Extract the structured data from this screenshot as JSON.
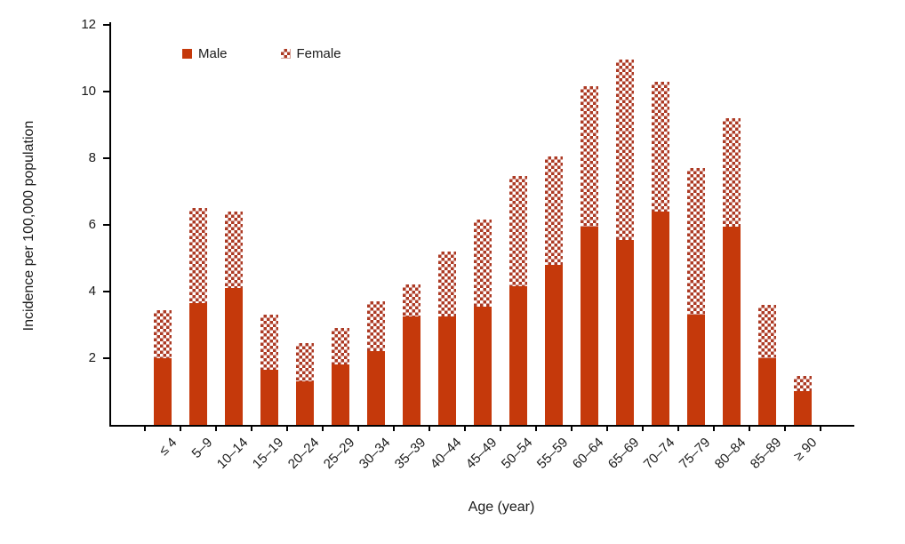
{
  "chart_data": {
    "type": "bar",
    "stacked": true,
    "title": "",
    "xlabel": "Age (year)",
    "ylabel": "Incidence per 100,000 population",
    "ylim": [
      0,
      12
    ],
    "yticks": [
      2,
      4,
      6,
      8,
      10,
      12
    ],
    "grid": "off",
    "legend_position": "top-left-inside",
    "categories": [
      "≤ 4",
      "5–9",
      "10–14",
      "15–19",
      "20–24",
      "25–29",
      "30–34",
      "35–39",
      "40–44",
      "45–49",
      "50–54",
      "55–59",
      "60–64",
      "65–69",
      "70–74",
      "75–79",
      "80–84",
      "85–89",
      "≥ 90"
    ],
    "series": [
      {
        "name": "Male",
        "style": "solid",
        "color": "#C5390B",
        "values": [
          2.0,
          3.65,
          4.1,
          1.65,
          1.3,
          1.8,
          2.2,
          3.25,
          3.25,
          3.55,
          4.15,
          4.8,
          5.95,
          5.55,
          6.4,
          3.3,
          5.95,
          2.0,
          1.0
        ]
      },
      {
        "name": "Female",
        "style": "checkerboard",
        "color": "#AC3A24",
        "values": [
          1.45,
          2.85,
          2.3,
          1.65,
          1.15,
          1.1,
          1.5,
          0.95,
          1.95,
          2.6,
          3.3,
          3.25,
          4.2,
          5.4,
          3.9,
          4.4,
          3.25,
          1.6,
          0.45
        ]
      }
    ],
    "totals": [
      3.45,
      6.5,
      6.4,
      3.3,
      2.45,
      2.9,
      3.7,
      4.2,
      5.2,
      6.15,
      7.45,
      8.05,
      10.15,
      10.95,
      10.3,
      7.7,
      9.2,
      3.6,
      1.45
    ]
  },
  "legend": {
    "male_label": "Male",
    "female_label": "Female"
  },
  "axes": {
    "y_title": "Incidence per 100,000 population",
    "x_title": "Age (year)",
    "axis_color": "#000000"
  }
}
